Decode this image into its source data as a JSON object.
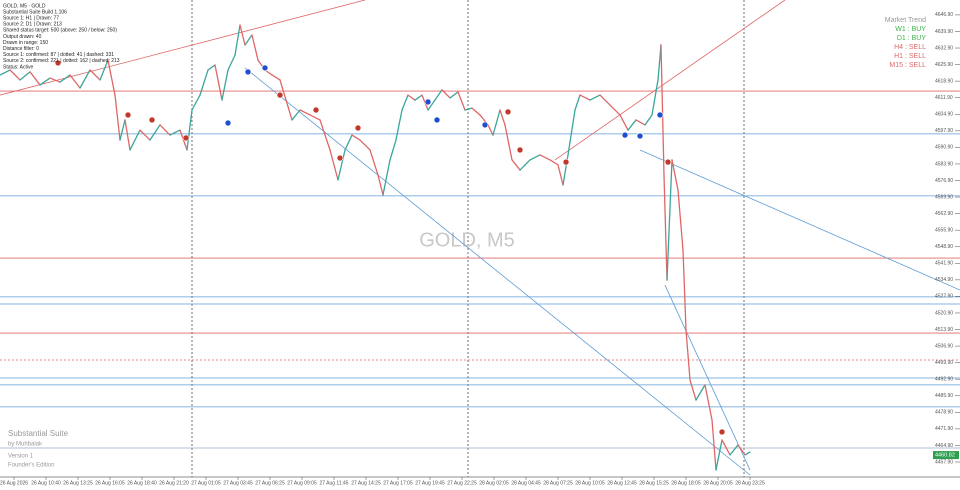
{
  "chart_data": {
    "type": "line",
    "watermark": "GOLD, M5",
    "xlim": [
      0,
      960
    ],
    "ylim": [
      4452.4,
      4653.2
    ],
    "x": [
      0,
      10,
      20,
      30,
      40,
      50,
      60,
      70,
      80,
      90,
      100,
      108,
      115,
      120,
      125,
      130,
      140,
      150,
      160,
      170,
      180,
      187,
      192,
      200,
      208,
      215,
      222,
      228,
      235,
      240,
      245,
      252,
      258,
      265,
      272,
      280,
      286,
      292,
      300,
      310,
      320,
      330,
      338,
      345,
      352,
      360,
      370,
      378,
      383,
      390,
      396,
      402,
      408,
      415,
      422,
      428,
      435,
      442,
      450,
      458,
      465,
      472,
      480,
      488,
      493,
      500,
      505,
      512,
      520,
      530,
      540,
      550,
      558,
      563,
      568,
      575,
      580,
      590,
      600,
      610,
      620,
      628,
      636,
      645,
      652,
      658,
      661,
      664,
      667,
      672,
      678,
      683,
      686,
      690,
      696,
      705,
      712,
      716,
      722,
      730,
      738,
      745,
      750
    ],
    "values": [
      4621.5,
      4623.6,
      4619.4,
      4622.8,
      4617.3,
      4620.2,
      4618.5,
      4621.5,
      4616.0,
      4623.6,
      4619.4,
      4627.8,
      4613.0,
      4594.0,
      4602.5,
      4589.8,
      4598.2,
      4594.0,
      4600.4,
      4596.1,
      4598.2,
      4589.8,
      4606.7,
      4613.0,
      4623.6,
      4625.7,
      4610.9,
      4623.6,
      4629.9,
      4642.6,
      4634.2,
      4638.4,
      4627.8,
      4623.6,
      4621.5,
      4619.4,
      4610.9,
      4602.5,
      4606.7,
      4604.6,
      4602.5,
      4589.8,
      4577.1,
      4589.8,
      4596.1,
      4594.0,
      4589.8,
      4579.2,
      4570.8,
      4585.6,
      4594.0,
      4606.7,
      4613.0,
      4610.9,
      4613.0,
      4606.7,
      4610.9,
      4615.2,
      4611.8,
      4614.3,
      4606.7,
      4607.5,
      4604.6,
      4600.4,
      4596.1,
      4606.7,
      4600.4,
      4585.6,
      4581.3,
      4585.6,
      4587.7,
      4585.6,
      4583.5,
      4575.0,
      4587.7,
      4606.7,
      4613.0,
      4610.9,
      4613.0,
      4608.8,
      4604.6,
      4598.2,
      4602.5,
      4600.4,
      4604.6,
      4619.4,
      4634.2,
      4579.2,
      4534.8,
      4585.6,
      4572.9,
      4547.5,
      4513.7,
      4492.6,
      4484.1,
      4490.5,
      4475.7,
      4454.5,
      4467.2,
      4460.9,
      4465.1,
      4460.9,
      4462.1
    ],
    "up_color": "#3aa59a",
    "down_color": "#e06666",
    "xticks": [
      {
        "value": 14,
        "label": "26 Aug 2026"
      },
      {
        "value": 46,
        "label": "26 Aug 10:40"
      },
      {
        "value": 78,
        "label": "26 Aug 13:25"
      },
      {
        "value": 110,
        "label": "26 Aug 16:05"
      },
      {
        "value": 142,
        "label": "26 Aug 18:40"
      },
      {
        "value": 174,
        "label": "26 Aug 21:20"
      },
      {
        "value": 206,
        "label": "27 Aug 01:05"
      },
      {
        "value": 238,
        "label": "27 Aug 03:45"
      },
      {
        "value": 270,
        "label": "27 Aug 06:25"
      },
      {
        "value": 302,
        "label": "27 Aug 09:05"
      },
      {
        "value": 334,
        "label": "27 Aug 11:45"
      },
      {
        "value": 366,
        "label": "27 Aug 14:25"
      },
      {
        "value": 398,
        "label": "27 Aug 17:05"
      },
      {
        "value": 430,
        "label": "27 Aug 19:45"
      },
      {
        "value": 462,
        "label": "27 Aug 22:25"
      },
      {
        "value": 494,
        "label": "28 Aug 02:05"
      },
      {
        "value": 526,
        "label": "28 Aug 04:45"
      },
      {
        "value": 558,
        "label": "28 Aug 07:25"
      },
      {
        "value": 590,
        "label": "28 Aug 10:05"
      },
      {
        "value": 622,
        "label": "28 Aug 12:45"
      },
      {
        "value": 654,
        "label": "28 Aug 15:25"
      },
      {
        "value": 686,
        "label": "28 Aug 18:05"
      },
      {
        "value": 718,
        "label": "28 Aug 20:05"
      },
      {
        "value": 750,
        "label": "28 Aug 23:25"
      }
    ],
    "yticks": [
      {
        "value": 4457.9,
        "label": "4457.90"
      },
      {
        "value": 4464.9,
        "label": "4464.90"
      },
      {
        "value": 4471.9,
        "label": "4471.90"
      },
      {
        "value": 4478.9,
        "label": "4478.90"
      },
      {
        "value": 4485.9,
        "label": "4485.90"
      },
      {
        "value": 4492.9,
        "label": "4492.90"
      },
      {
        "value": 4499.9,
        "label": "4499.90"
      },
      {
        "value": 4506.9,
        "label": "4506.90"
      },
      {
        "value": 4513.9,
        "label": "4513.90"
      },
      {
        "value": 4520.9,
        "label": "4520.90"
      },
      {
        "value": 4527.9,
        "label": "4527.90"
      },
      {
        "value": 4534.9,
        "label": "4534.90"
      },
      {
        "value": 4541.9,
        "label": "4541.90"
      },
      {
        "value": 4548.9,
        "label": "4548.90"
      },
      {
        "value": 4555.9,
        "label": "4555.90"
      },
      {
        "value": 4562.9,
        "label": "4562.90"
      },
      {
        "value": 4569.9,
        "label": "4569.90"
      },
      {
        "value": 4576.9,
        "label": "4576.90"
      },
      {
        "value": 4583.9,
        "label": "4583.90"
      },
      {
        "value": 4590.9,
        "label": "4590.90"
      },
      {
        "value": 4597.9,
        "label": "4597.90"
      },
      {
        "value": 4604.9,
        "label": "4604.90"
      },
      {
        "value": 4611.9,
        "label": "4611.90"
      },
      {
        "value": 4618.9,
        "label": "4618.90"
      },
      {
        "value": 4625.9,
        "label": "4625.90"
      },
      {
        "value": 4632.9,
        "label": "4632.90"
      },
      {
        "value": 4639.9,
        "label": "4639.90"
      },
      {
        "value": 4646.9,
        "label": "4646.90"
      }
    ],
    "last_price": {
      "value": 4460.82,
      "label": "4460.82",
      "color": "#2e9e4f"
    },
    "levels": [
      {
        "value": 4614.7,
        "color": "#e06666"
      },
      {
        "value": 4596.6,
        "color": "#5b9bd5"
      },
      {
        "value": 4570.4,
        "color": "#5b9bd5"
      },
      {
        "value": 4544.1,
        "color": "#e06666"
      },
      {
        "value": 4527.7,
        "color": "#5b9bd5"
      },
      {
        "value": 4524.7,
        "color": "#5b9bd5"
      },
      {
        "value": 4512.4,
        "color": "#e06666"
      },
      {
        "value": 4501.0,
        "color": "#e06666",
        "dashed": true
      },
      {
        "value": 4493.4,
        "color": "#5b9bd5"
      },
      {
        "value": 4490.5,
        "color": "#5b9bd5"
      },
      {
        "value": 4481.2,
        "color": "#5b9bd5"
      },
      {
        "value": 4463.8,
        "color": "#9ab"
      }
    ],
    "trendlines": [
      {
        "x": [
          0,
          365
        ],
        "values": [
          4613.0,
          4653.2
        ],
        "color": "#e06666"
      },
      {
        "x": [
          555,
          785
        ],
        "values": [
          4585.6,
          4653.2
        ],
        "color": "#e06666"
      },
      {
        "x": [
          245,
          750
        ],
        "values": [
          4624.5,
          4452.4
        ],
        "color": "#5b9bd5"
      },
      {
        "x": [
          640,
          960
        ],
        "values": [
          4589.8,
          4530.6
        ],
        "color": "#5b9bd5"
      },
      {
        "x": [
          665,
          750
        ],
        "values": [
          4532.7,
          4454.5
        ],
        "color": "#5b9bd5"
      }
    ],
    "signals": [
      {
        "x": 58,
        "value": 4626.6,
        "color": "#c0392b"
      },
      {
        "x": 128,
        "value": 4604.6,
        "color": "#c0392b"
      },
      {
        "x": 152,
        "value": 4602.5,
        "color": "#c0392b"
      },
      {
        "x": 186,
        "value": 4594.9,
        "color": "#c0392b"
      },
      {
        "x": 280,
        "value": 4613.0,
        "color": "#c0392b"
      },
      {
        "x": 316,
        "value": 4606.7,
        "color": "#c0392b"
      },
      {
        "x": 358,
        "value": 4599.1,
        "color": "#c0392b"
      },
      {
        "x": 340,
        "value": 4586.4,
        "color": "#c0392b"
      },
      {
        "x": 508,
        "value": 4605.9,
        "color": "#c0392b"
      },
      {
        "x": 520,
        "value": 4589.8,
        "color": "#c0392b"
      },
      {
        "x": 566,
        "value": 4584.7,
        "color": "#c0392b"
      },
      {
        "x": 668,
        "value": 4584.7,
        "color": "#c0392b"
      },
      {
        "x": 722,
        "value": 4470.6,
        "color": "#c0392b"
      },
      {
        "x": 248,
        "value": 4622.8,
        "color": "#1f4fd1"
      },
      {
        "x": 265,
        "value": 4624.5,
        "color": "#1f4fd1"
      },
      {
        "x": 228,
        "value": 4601.2,
        "color": "#1f4fd1"
      },
      {
        "x": 428,
        "value": 4610.1,
        "color": "#1f4fd1"
      },
      {
        "x": 437,
        "value": 4602.5,
        "color": "#1f4fd1"
      },
      {
        "x": 485,
        "value": 4600.4,
        "color": "#1f4fd1"
      },
      {
        "x": 625,
        "value": 4596.1,
        "color": "#1f4fd1"
      },
      {
        "x": 640,
        "value": 4595.7,
        "color": "#1f4fd1"
      },
      {
        "x": 660,
        "value": 4604.6,
        "color": "#1f4fd1"
      }
    ]
  },
  "info_lines": [
    "GOLD, M5 · GOLD",
    "Substantial Suite Build 1.106",
    "Source 1: H1 | Drawn: 77",
    "Source 2: D1 | Drawn: 213",
    "Shared status target: 500 (above: 250 / below: 250)",
    "Output drawn: 40",
    "Drawn in range: 150",
    "Distance filter: 0",
    "Source 1: confirmed: 87 | dotted: 41 | dashed: 331",
    "Source 2: confirmed: 221 | dotted: 162 | dashed: 213",
    "Status: Active"
  ],
  "market_trend": {
    "title": "Market Trend",
    "rows": [
      {
        "text": "W1 : BUY",
        "color": "#3cb44b"
      },
      {
        "text": "D1 : BUY",
        "color": "#3cb44b"
      },
      {
        "text": "H4 : SELL",
        "color": "#e06666"
      },
      {
        "text": "H1 : SELL",
        "color": "#e06666"
      },
      {
        "text": "M15 : SELL",
        "color": "#e06666"
      }
    ]
  },
  "branding": [
    "Substantial Suite",
    "by Muhbalak",
    "Version 1",
    "Founder's Edition"
  ]
}
